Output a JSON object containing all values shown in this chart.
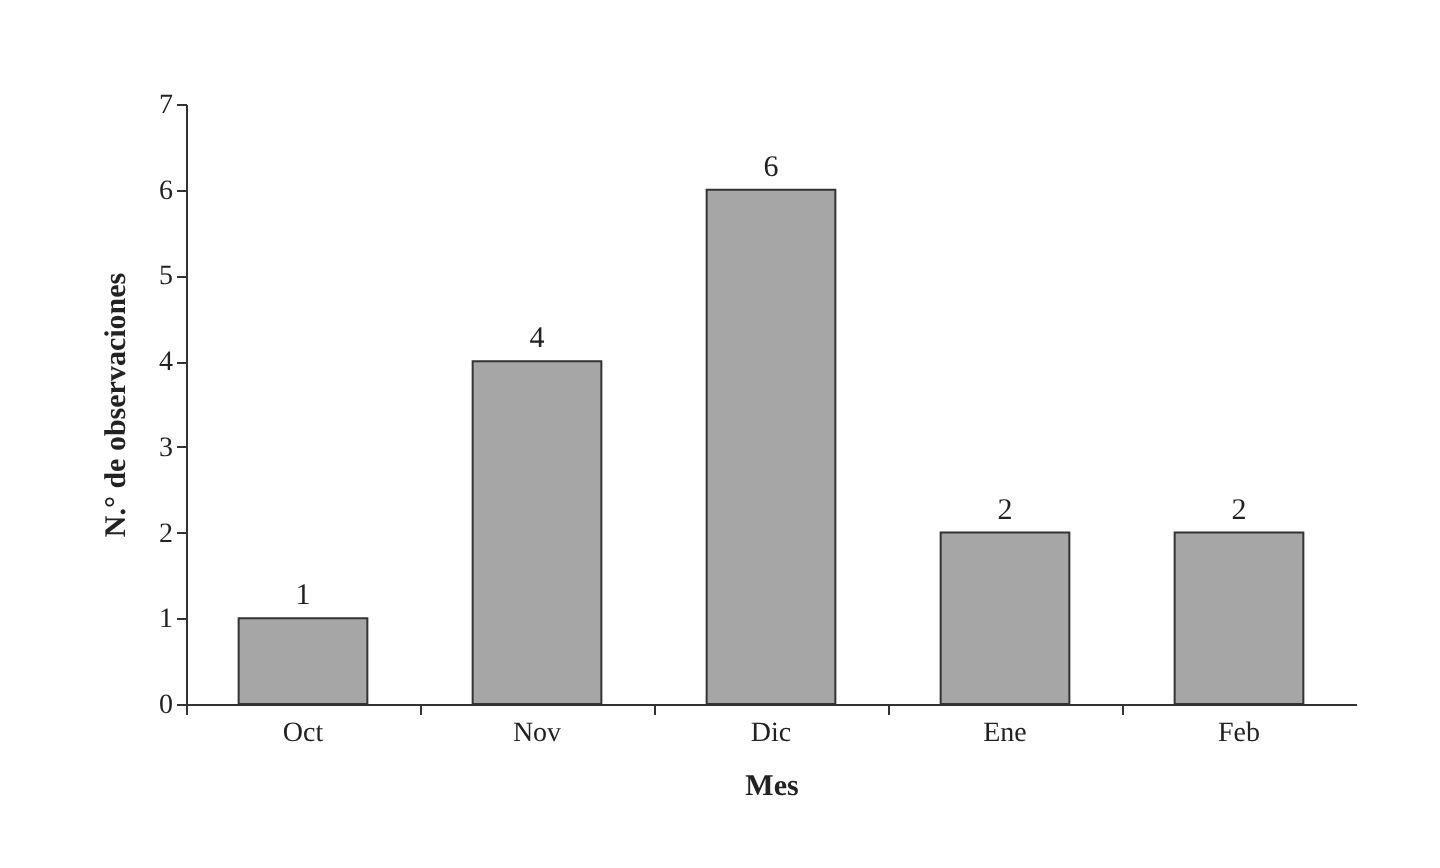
{
  "chart_data": {
    "type": "bar",
    "xlabel": "Mes",
    "ylabel": "N.° de observaciones",
    "categories": [
      "Oct",
      "Nov",
      "Dic",
      "Ene",
      "Feb"
    ],
    "values": [
      1,
      4,
      6,
      2,
      2
    ],
    "color": "#a6a6a6",
    "ylim": [
      0,
      7
    ],
    "yticks": [
      0,
      1,
      2,
      3,
      4,
      5,
      6,
      7
    ],
    "grid": false,
    "data_labels": true
  }
}
